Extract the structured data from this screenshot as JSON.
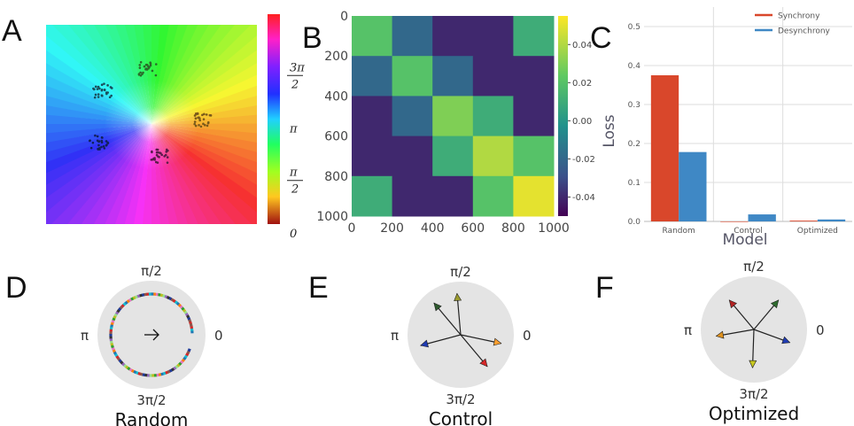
{
  "panels": {
    "a": "A",
    "b": "B",
    "c": "C",
    "d": "D",
    "e": "E",
    "f": "F"
  },
  "panel_a": {
    "colorbar_ticks": [
      {
        "id": "3pi2",
        "top": "3π",
        "bottom": "2",
        "value": 4.712
      },
      {
        "id": "pi",
        "top": "π",
        "bottom": "",
        "value": 3.1416
      },
      {
        "id": "pi2",
        "top": "π",
        "bottom": "2",
        "value": 1.5708
      },
      {
        "id": "zero",
        "top": "0",
        "bottom": "",
        "value": 0
      }
    ],
    "clusters": [
      {
        "name": "cluster-green",
        "color": "#2a6b2a",
        "u": 0.48,
        "v": 0.22
      },
      {
        "name": "cluster-teal",
        "color": "#1a4d5a",
        "u": 0.27,
        "v": 0.33
      },
      {
        "name": "cluster-orange",
        "color": "#7a5a1a",
        "u": 0.75,
        "v": 0.48
      },
      {
        "name": "cluster-blue",
        "color": "#10205a",
        "u": 0.25,
        "v": 0.59
      },
      {
        "name": "cluster-magenta",
        "color": "#5a1a4a",
        "u": 0.54,
        "v": 0.66
      }
    ]
  },
  "chart_data": [
    {
      "type": "heatmap",
      "title": "",
      "xlabel": "",
      "ylabel": "",
      "x_ticks": [
        "0",
        "200",
        "400",
        "600",
        "800",
        "1000"
      ],
      "y_ticks": [
        "0",
        "200",
        "400",
        "600",
        "800",
        "1000"
      ],
      "range": [
        0,
        1000
      ],
      "block_edges": [
        0,
        200,
        400,
        600,
        800,
        1000
      ],
      "block_values": [
        [
          0.02,
          -0.02,
          -0.04,
          -0.04,
          0.01
        ],
        [
          -0.02,
          0.02,
          -0.02,
          -0.04,
          -0.04
        ],
        [
          -0.04,
          -0.02,
          0.03,
          0.01,
          -0.04
        ],
        [
          -0.04,
          -0.04,
          0.01,
          0.04,
          0.02
        ],
        [
          0.01,
          -0.04,
          -0.04,
          0.02,
          0.05
        ]
      ],
      "colorbar_ticks": [
        "0.04",
        "0.02",
        "0.00",
        "-0.02",
        "-0.04"
      ],
      "colorbar_values": [
        0.04,
        0.02,
        0.0,
        -0.02,
        -0.04
      ],
      "vmin": -0.05,
      "vmax": 0.055,
      "colormap": "viridis"
    },
    {
      "type": "bar",
      "categories": [
        "Random",
        "Control",
        "Optimized"
      ],
      "series": [
        {
          "name": "Synchrony",
          "color": "#d9472b",
          "values": [
            0.375,
            0.0,
            0.002
          ]
        },
        {
          "name": "Desynchrony",
          "color": "#3f88c5",
          "values": [
            0.178,
            0.018,
            0.005
          ]
        }
      ],
      "title": "",
      "xlabel": "Model",
      "ylabel": "Loss",
      "ylim": [
        0,
        0.55
      ],
      "y_ticks": [
        "0.0",
        "0.1",
        "0.2",
        "0.3",
        "0.4",
        "0.5"
      ],
      "grid": true,
      "legend_position": "top-right"
    }
  ],
  "polar": {
    "labels": {
      "top": "π/2",
      "left": "π",
      "right": "0",
      "bottom": "3π/2"
    },
    "d": {
      "title": "Random",
      "dot_colors": [
        "#d62728",
        "#2ca02c",
        "#1f3b9a",
        "#ff7f0e",
        "#9467bd",
        "#17becf",
        "#bcbd22",
        "#8c564b",
        "#e377c2",
        "#333333",
        "#1f77b4",
        "#98df8a"
      ]
    },
    "e": {
      "title": "Control",
      "arrows": [
        {
          "name": "arrow-red",
          "color": "#d62728",
          "angle_deg": -50,
          "length": 0.78
        },
        {
          "name": "arrow-orange",
          "color": "#ff9f2e",
          "angle_deg": -12,
          "length": 0.78
        },
        {
          "name": "arrow-blue",
          "color": "#1f3bb3",
          "angle_deg": 195,
          "length": 0.78
        },
        {
          "name": "arrow-olive",
          "color": "#9a9a2e",
          "angle_deg": 95,
          "length": 0.78
        },
        {
          "name": "arrow-darkgreen",
          "color": "#2e5a2e",
          "angle_deg": 130,
          "length": 0.78
        }
      ]
    },
    "f": {
      "title": "Optimized",
      "arrows": [
        {
          "name": "arrow-red",
          "color": "#b22222",
          "angle_deg": 130,
          "length": 0.72
        },
        {
          "name": "arrow-green",
          "color": "#2e6b2e",
          "angle_deg": 50,
          "length": 0.72
        },
        {
          "name": "arrow-blue",
          "color": "#1f3bb3",
          "angle_deg": -20,
          "length": 0.72
        },
        {
          "name": "arrow-yellow",
          "color": "#c8c81e",
          "angle_deg": -92,
          "length": 0.72
        },
        {
          "name": "arrow-orange",
          "color": "#e0921e",
          "angle_deg": 190,
          "length": 0.72
        }
      ]
    }
  }
}
